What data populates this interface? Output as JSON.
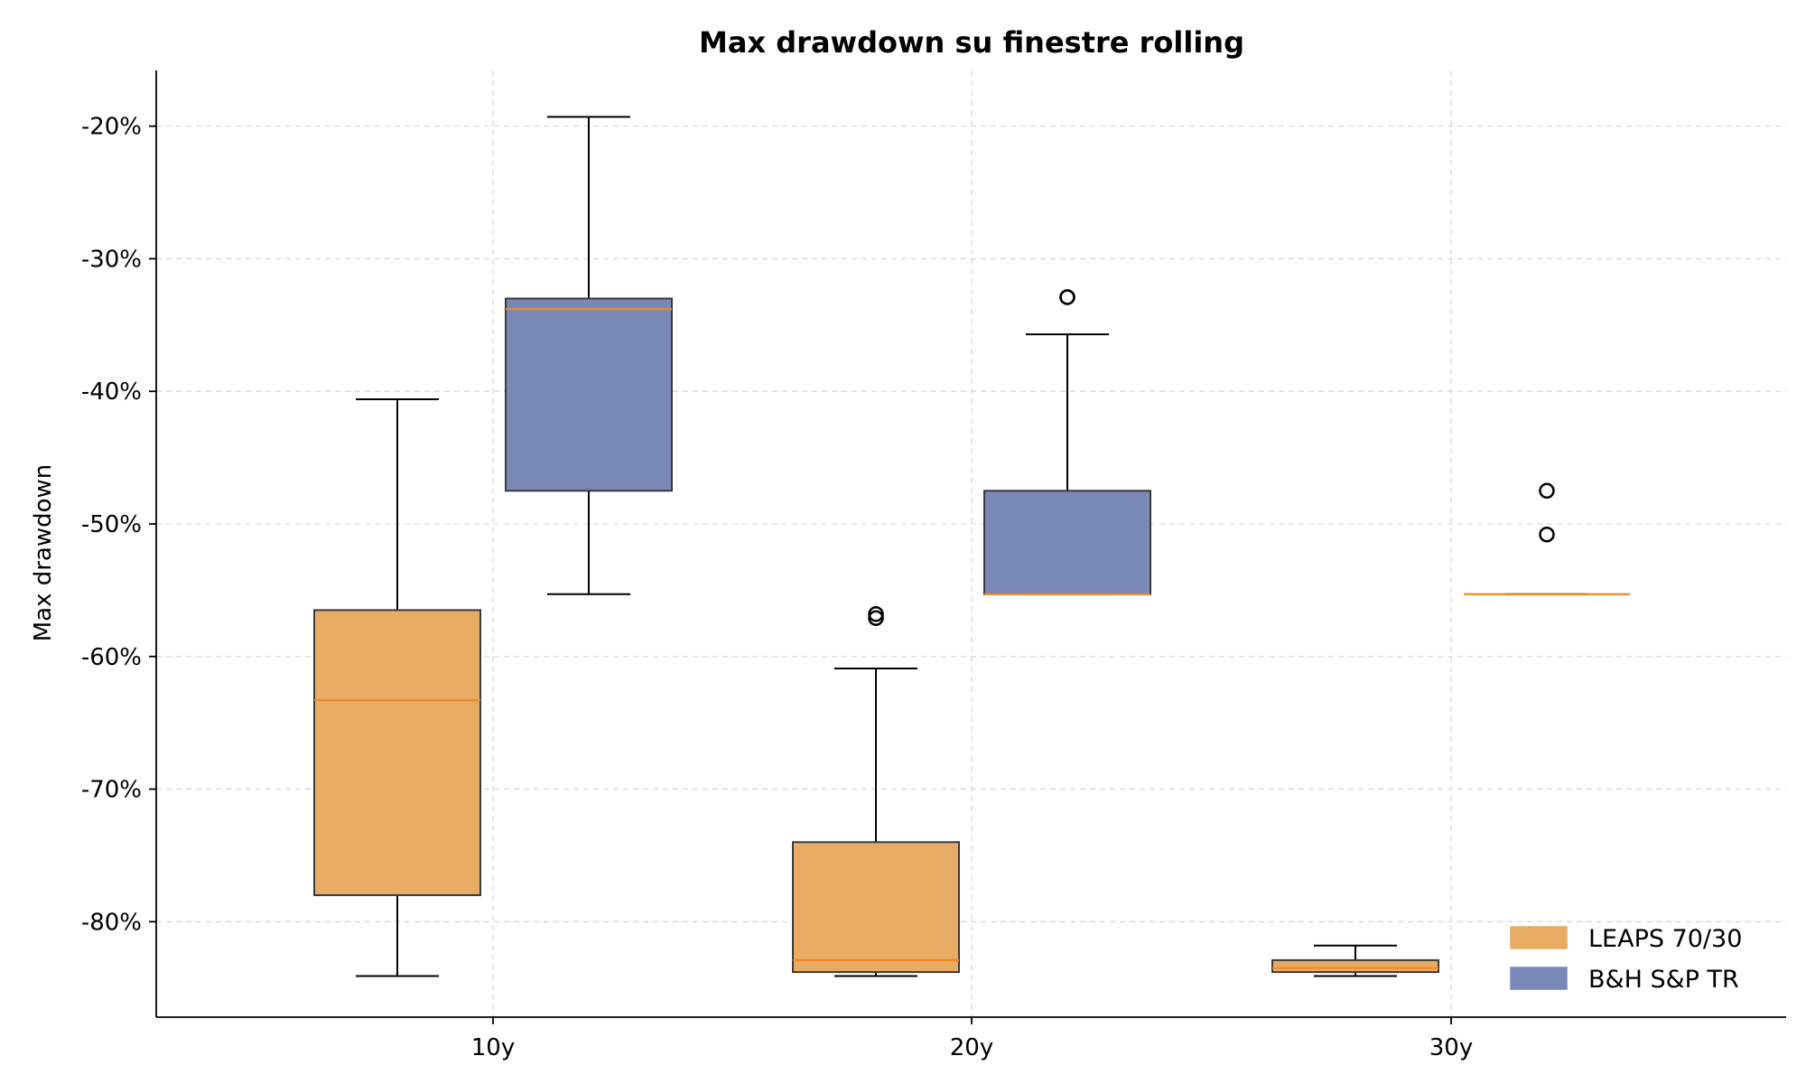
{
  "chart_data": {
    "type": "box",
    "title": "Max drawdown su finestre rolling",
    "xlabel": "",
    "ylabel": "Max drawdown",
    "categories": [
      "10y",
      "20y",
      "30y"
    ],
    "yticks": [
      -20,
      -30,
      -40,
      -50,
      -60,
      -70,
      -80
    ],
    "ytick_labels": [
      "-20%",
      "-30%",
      "-40%",
      "-50%",
      "-60%",
      "-70%",
      "-80%"
    ],
    "ylim": [
      -87.2,
      -15.8
    ],
    "grid": true,
    "legend_position": "bottom-right",
    "median_color": "#f08a24",
    "series": [
      {
        "name": "LEAPS 70/30",
        "color": "#e8ab63",
        "boxes": [
          {
            "category": "10y",
            "whisker_low": -84.1,
            "q1": -78.0,
            "median": -63.3,
            "q3": -56.5,
            "whisker_high": -40.6,
            "outliers": []
          },
          {
            "category": "20y",
            "whisker_low": -84.1,
            "q1": -83.8,
            "median": -82.9,
            "q3": -74.0,
            "whisker_high": -60.9,
            "outliers": [
              -56.8,
              -57.1
            ]
          },
          {
            "category": "30y",
            "whisker_low": -84.1,
            "q1": -83.8,
            "median": -83.5,
            "q3": -82.9,
            "whisker_high": -81.8,
            "outliers": []
          }
        ]
      },
      {
        "name": "B&H S&P TR",
        "color": "#7889b7",
        "boxes": [
          {
            "category": "10y",
            "whisker_low": -55.3,
            "q1": -47.5,
            "median": -33.8,
            "q3": -33.0,
            "whisker_high": -19.3,
            "outliers": []
          },
          {
            "category": "20y",
            "whisker_low": -55.3,
            "q1": -55.3,
            "median": -55.3,
            "q3": -47.5,
            "whisker_high": -35.7,
            "outliers": [
              -32.9,
              -32.9
            ]
          },
          {
            "category": "30y",
            "whisker_low": -55.3,
            "q1": -55.3,
            "median": -55.3,
            "q3": -55.3,
            "whisker_high": -55.3,
            "outliers": [
              -47.5,
              -50.8
            ]
          }
        ]
      }
    ]
  }
}
